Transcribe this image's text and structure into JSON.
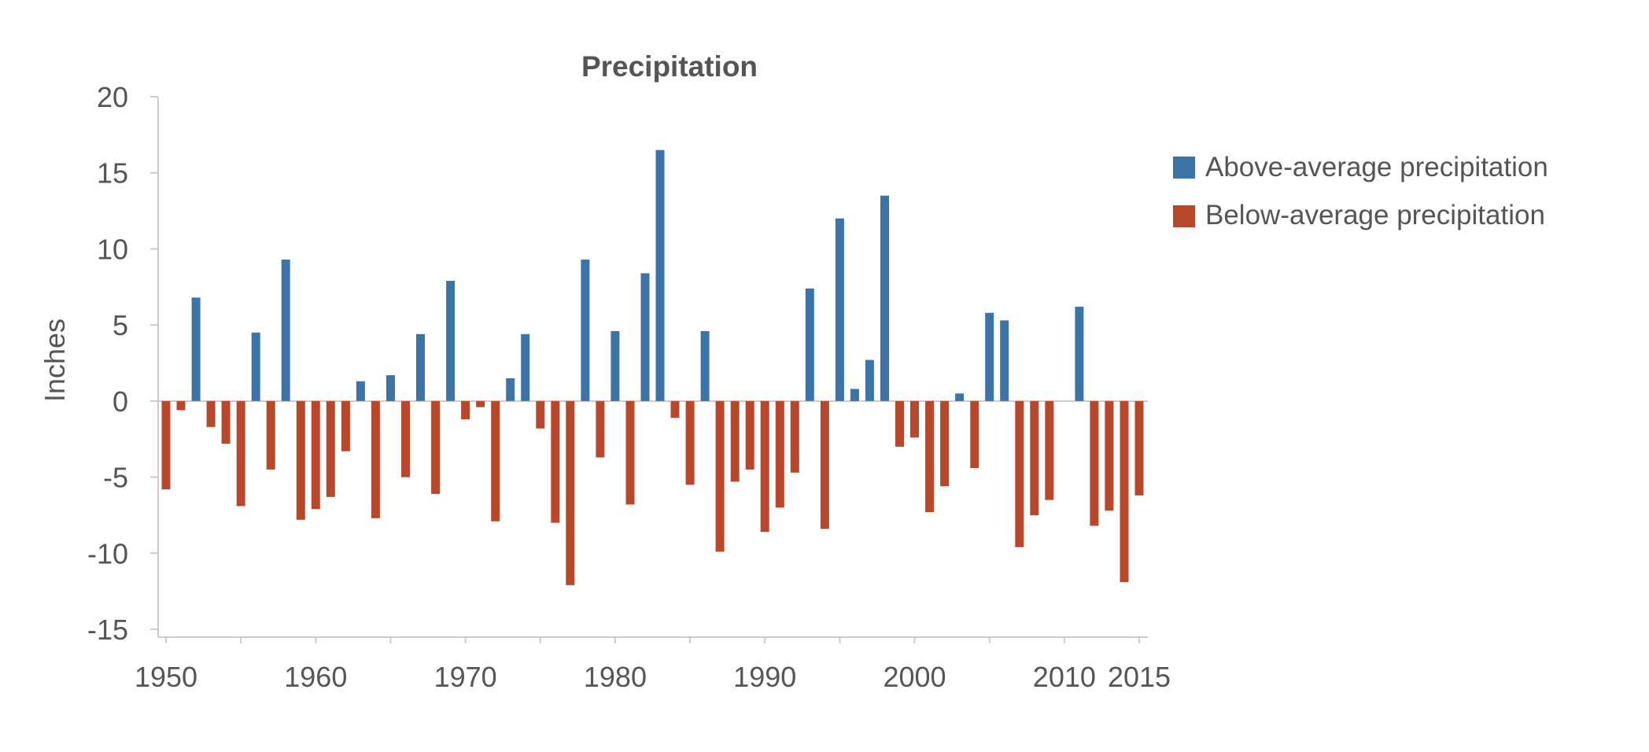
{
  "chart_data": {
    "type": "bar",
    "title": "Precipitation",
    "xlabel": "",
    "ylabel": "Inches",
    "ylim": [
      -15,
      20
    ],
    "xlim": [
      1950,
      2015
    ],
    "yticks": [
      20,
      15,
      10,
      5,
      0,
      -5,
      -10,
      -15
    ],
    "ytick_labels": [
      "20",
      "15",
      "10",
      "5",
      "0",
      "-5",
      "-10",
      "-15"
    ],
    "xticks": [
      1950,
      1960,
      1970,
      1980,
      1990,
      2000,
      2010,
      2015
    ],
    "xtick_labels": [
      "1950",
      "1960",
      "1970",
      "1980",
      "1990",
      "2000",
      "2010",
      "2015"
    ],
    "grid": false,
    "legend_position": "right",
    "legend": [
      {
        "label": "Above-average precipitation",
        "color": "#3D74A8"
      },
      {
        "label": "Below-average precipitation",
        "color": "#B8482C"
      }
    ],
    "colors": {
      "above": "#3D74A8",
      "below": "#B8482C",
      "text": "#555555",
      "axis": "#cccccc"
    },
    "x": [
      1950,
      1951,
      1952,
      1953,
      1954,
      1955,
      1956,
      1957,
      1958,
      1959,
      1960,
      1961,
      1962,
      1963,
      1964,
      1965,
      1966,
      1967,
      1968,
      1969,
      1970,
      1971,
      1972,
      1973,
      1974,
      1975,
      1976,
      1977,
      1978,
      1979,
      1980,
      1981,
      1982,
      1983,
      1984,
      1985,
      1986,
      1987,
      1988,
      1989,
      1990,
      1991,
      1992,
      1993,
      1994,
      1995,
      1996,
      1997,
      1998,
      1999,
      2000,
      2001,
      2002,
      2003,
      2004,
      2005,
      2006,
      2007,
      2008,
      2009,
      2010,
      2011,
      2012,
      2013,
      2014,
      2015
    ],
    "values": [
      -5.8,
      -0.6,
      6.8,
      -1.7,
      -2.8,
      -6.9,
      4.5,
      -4.5,
      9.3,
      -7.8,
      -7.1,
      -6.3,
      -3.3,
      1.3,
      -7.7,
      1.7,
      -5.0,
      4.4,
      -6.1,
      7.9,
      -1.2,
      -0.4,
      -7.9,
      1.5,
      4.4,
      -1.8,
      -8.0,
      -12.1,
      9.3,
      -3.7,
      4.6,
      -6.8,
      8.4,
      16.5,
      -1.1,
      -5.5,
      4.6,
      -9.9,
      -5.3,
      -4.5,
      -8.6,
      -7.0,
      -4.7,
      7.4,
      -8.4,
      12.0,
      0.8,
      2.7,
      13.5,
      -3.0,
      -2.4,
      -7.3,
      -5.6,
      0.5,
      -4.4,
      5.8,
      5.3,
      -9.6,
      -7.5,
      -6.5,
      0.0,
      6.2,
      -8.2,
      -7.2,
      -11.9,
      -6.2
    ]
  }
}
